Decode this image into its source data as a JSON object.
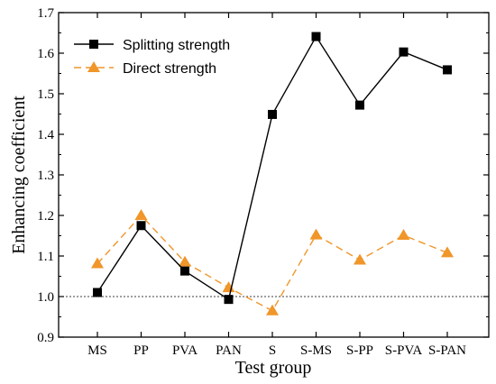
{
  "chart_data": {
    "type": "line",
    "title": "",
    "xlabel": "Test group",
    "ylabel": "Enhancing coefficient",
    "categories": [
      "MS",
      "PP",
      "PVA",
      "PAN",
      "S",
      "S-MS",
      "S-PP",
      "S-PVA",
      "S-PAN"
    ],
    "ylim": [
      0.9,
      1.7
    ],
    "yticks": [
      0.9,
      1.0,
      1.1,
      1.2,
      1.3,
      1.4,
      1.5,
      1.6,
      1.7
    ],
    "ytick_labels": [
      "0.9",
      "1.0",
      "1.1",
      "1.2",
      "1.3",
      "1.4",
      "1.5",
      "1.6",
      "1.7"
    ],
    "grid": false,
    "legend_position": "top-left",
    "reference_line": {
      "y": 1.0,
      "style": "dashed",
      "color": "#000000"
    },
    "series": [
      {
        "name": "Splitting strength",
        "values": [
          1.01,
          1.175,
          1.063,
          0.993,
          1.449,
          1.641,
          1.472,
          1.603,
          1.559
        ],
        "color": "#000000",
        "marker": "square",
        "line_style": "solid"
      },
      {
        "name": "Direct strength",
        "values": [
          1.081,
          1.2,
          1.085,
          1.022,
          0.965,
          1.152,
          1.09,
          1.151,
          1.108
        ],
        "color": "#f0962a",
        "marker": "triangle",
        "line_style": "dashed"
      }
    ]
  }
}
